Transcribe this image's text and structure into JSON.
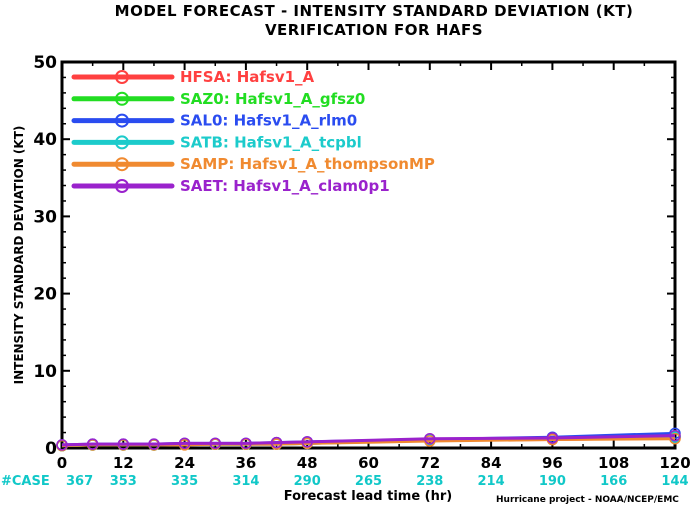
{
  "chart_data": {
    "type": "line",
    "title": "MODEL FORECAST - INTENSITY STANDARD DEVIATION (KT)",
    "subtitle": "VERIFICATION FOR HAFS",
    "xlabel": "Forecast lead time (hr)",
    "ylabel": "INTENSITY STANDARD DEVIATION (KT)",
    "xlim": [
      0,
      120
    ],
    "ylim": [
      0,
      50
    ],
    "x_ticks": [
      0,
      12,
      24,
      36,
      48,
      60,
      72,
      84,
      96,
      108,
      120
    ],
    "y_ticks": [
      0,
      10,
      20,
      30,
      40,
      50
    ],
    "grid": false,
    "legend_position": "top-left",
    "case_label": "#CASE",
    "case_counts": [
      {
        "x": 0,
        "n": "367"
      },
      {
        "x": 12,
        "n": "353"
      },
      {
        "x": 24,
        "n": "335"
      },
      {
        "x": 36,
        "n": "314"
      },
      {
        "x": 48,
        "n": "290"
      },
      {
        "x": 60,
        "n": "265"
      },
      {
        "x": 72,
        "n": "238"
      },
      {
        "x": 84,
        "n": "214"
      },
      {
        "x": 96,
        "n": "190"
      },
      {
        "x": 108,
        "n": "166"
      },
      {
        "x": 120,
        "n": "144"
      }
    ],
    "case_color": "#11c8c8",
    "marker_x": [
      0,
      6,
      12,
      18,
      24,
      30,
      36,
      42,
      48,
      72,
      96,
      120
    ],
    "series": [
      {
        "name": "HFSA:  Hafsv1_A",
        "color": "#ff4040",
        "y": [
          0.3,
          0.4,
          0.4,
          0.4,
          0.5,
          0.5,
          0.5,
          0.5,
          0.6,
          1.0,
          1.1,
          1.3
        ]
      },
      {
        "name": "SAZ0:  Hafsv1_A_gfsz0",
        "color": "#22dd22",
        "y": [
          0.3,
          0.4,
          0.4,
          0.4,
          0.5,
          0.5,
          0.5,
          0.6,
          0.7,
          1.0,
          1.2,
          1.5
        ]
      },
      {
        "name": "SAL0:  Hafsv1_A_rlm0",
        "color": "#2a4cf0",
        "y": [
          0.4,
          0.5,
          0.5,
          0.5,
          0.6,
          0.6,
          0.6,
          0.7,
          0.8,
          1.1,
          1.4,
          1.9
        ]
      },
      {
        "name": "SATB:  Hafsv1_A_tcpbl",
        "color": "#1ccbcb",
        "y": [
          0.3,
          0.4,
          0.4,
          0.4,
          0.5,
          0.5,
          0.5,
          0.5,
          0.6,
          1.0,
          1.2,
          1.4
        ]
      },
      {
        "name": "SAMP:  Hafsv1_A_thompsonMP",
        "color": "#f08a30",
        "y": [
          0.3,
          0.4,
          0.4,
          0.4,
          0.4,
          0.5,
          0.5,
          0.5,
          0.6,
          0.9,
          1.1,
          1.2
        ]
      },
      {
        "name": "SAET:  Hafsv1_A_clam0p1",
        "color": "#9a22cc",
        "y": [
          0.4,
          0.5,
          0.5,
          0.5,
          0.6,
          0.6,
          0.6,
          0.7,
          0.8,
          1.2,
          1.3,
          1.6
        ]
      }
    ],
    "credit": "Hurricane project - NOAA/NCEP/EMC"
  }
}
